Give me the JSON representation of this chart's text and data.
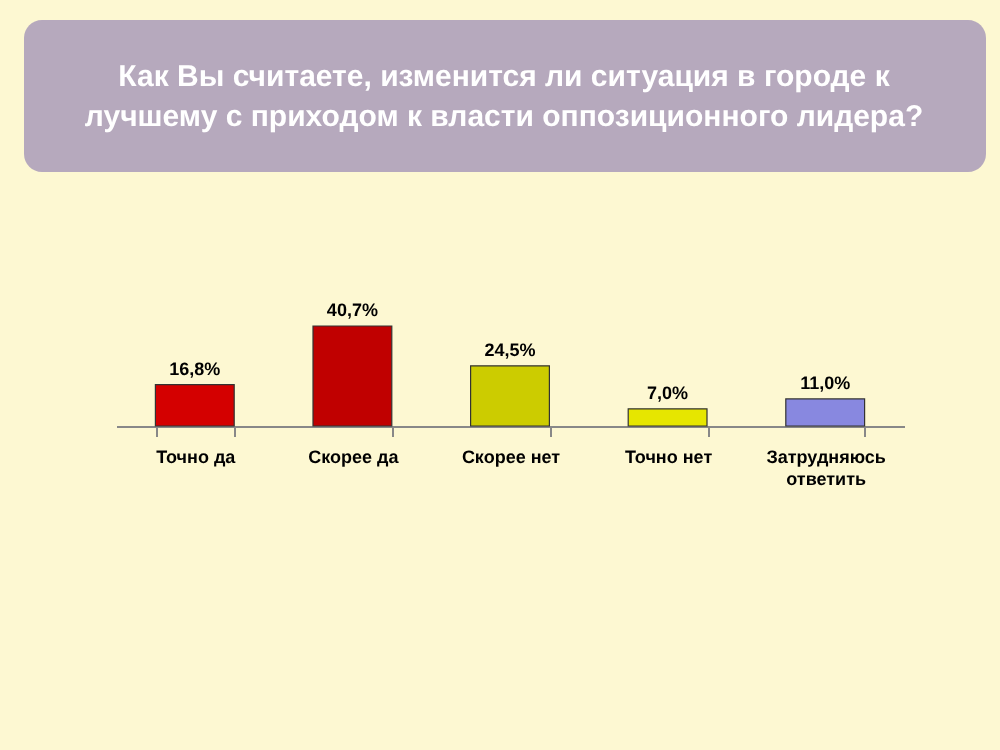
{
  "chart_data": {
    "type": "bar",
    "title": "Как Вы считаете, изменится ли ситуация в городе к лучшему с приходом к власти оппозиционного лидера?",
    "categories": [
      "Точно да",
      "Скорее да",
      "Скорее нет",
      "Точно нет",
      "Затрудняюсь ответить"
    ],
    "values": [
      16.8,
      40.7,
      24.5,
      7.0,
      11.0
    ],
    "value_labels": [
      "16,8%",
      "40,7%",
      "24,5%",
      "7,0%",
      "11,0%"
    ],
    "colors": [
      "#d40000",
      "#c00000",
      "#cccc00",
      "#e6e600",
      "#8888e0"
    ],
    "grid": false
  }
}
